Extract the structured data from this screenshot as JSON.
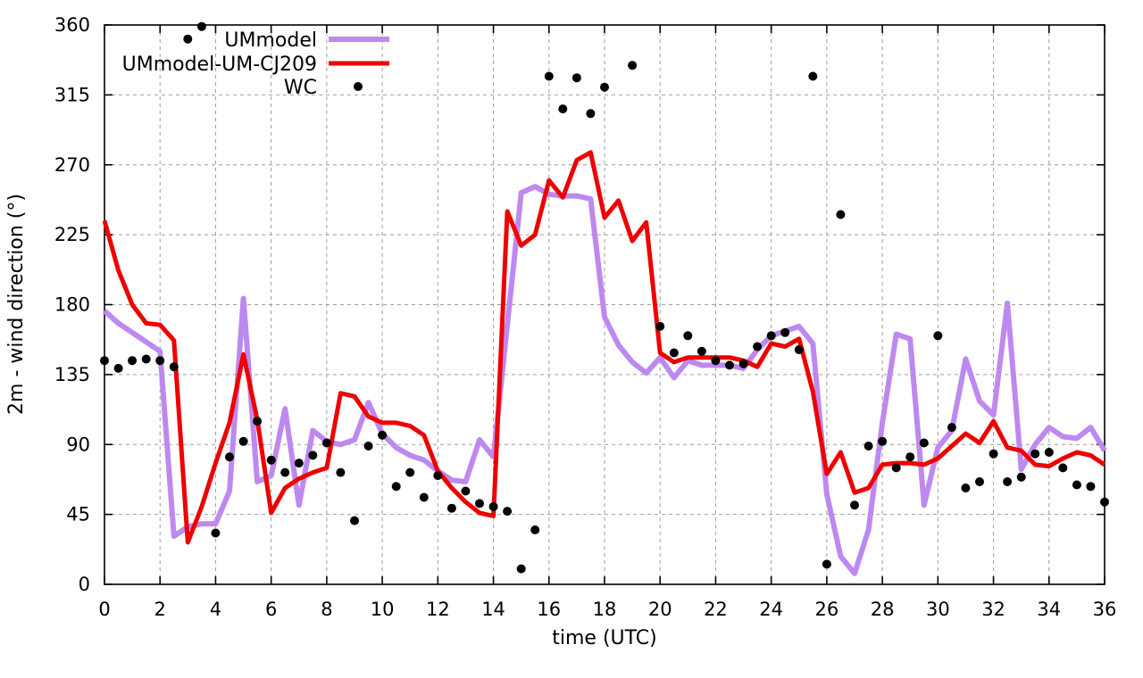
{
  "chart_data": {
    "type": "line+scatter",
    "title": "",
    "xlabel": "time (UTC)",
    "ylabel": "2m - wind direction (°)",
    "xlim": [
      0,
      36
    ],
    "ylim": [
      0,
      360
    ],
    "xticks": [
      0,
      2,
      4,
      6,
      8,
      10,
      12,
      14,
      16,
      18,
      20,
      22,
      24,
      26,
      28,
      30,
      32,
      34,
      36
    ],
    "yticks": [
      0,
      45,
      90,
      135,
      180,
      225,
      270,
      315,
      360
    ],
    "grid": true,
    "legend_position": "top-left-inside",
    "background_color": "#ffffff",
    "grid_color": "#9e9e9e",
    "series": [
      {
        "name": "UMmodel",
        "type": "line",
        "color": "#bd89f0",
        "line_width": 6,
        "points": [
          [
            0,
            176
          ],
          [
            0.5,
            168
          ],
          [
            1,
            162
          ],
          [
            1.5,
            156
          ],
          [
            2,
            150
          ],
          [
            2.5,
            31
          ],
          [
            3,
            37
          ],
          [
            3.5,
            39
          ],
          [
            4,
            39
          ],
          [
            4.5,
            60
          ],
          [
            5,
            184
          ],
          [
            5.5,
            66
          ],
          [
            6,
            70
          ],
          [
            6.5,
            113
          ],
          [
            7,
            51
          ],
          [
            7.5,
            99
          ],
          [
            8,
            92
          ],
          [
            8.5,
            90
          ],
          [
            9,
            93
          ],
          [
            9.5,
            117
          ],
          [
            10,
            97
          ],
          [
            10.5,
            88
          ],
          [
            11,
            83
          ],
          [
            11.5,
            80
          ],
          [
            12,
            73
          ],
          [
            12.5,
            67
          ],
          [
            13,
            66
          ],
          [
            13.5,
            93
          ],
          [
            14,
            82
          ],
          [
            14.5,
            167
          ],
          [
            15,
            252
          ],
          [
            15.5,
            256
          ],
          [
            16,
            251
          ],
          [
            16.5,
            250
          ],
          [
            17,
            250
          ],
          [
            17.5,
            248
          ],
          [
            18,
            172
          ],
          [
            18.5,
            154
          ],
          [
            19,
            143
          ],
          [
            19.5,
            136
          ],
          [
            20,
            146
          ],
          [
            20.5,
            133
          ],
          [
            21,
            144
          ],
          [
            21.5,
            141
          ],
          [
            22,
            141
          ],
          [
            22.5,
            141
          ],
          [
            23,
            139
          ],
          [
            23.5,
            151
          ],
          [
            24,
            160
          ],
          [
            24.5,
            163
          ],
          [
            25,
            166
          ],
          [
            25.5,
            155
          ],
          [
            26,
            58
          ],
          [
            26.5,
            18
          ],
          [
            27,
            7
          ],
          [
            27.5,
            35
          ],
          [
            28,
            104
          ],
          [
            28.5,
            161
          ],
          [
            29,
            158
          ],
          [
            29.5,
            51
          ],
          [
            30,
            88
          ],
          [
            30.5,
            99
          ],
          [
            31,
            145
          ],
          [
            31.5,
            118
          ],
          [
            32,
            109
          ],
          [
            32.5,
            181
          ],
          [
            33,
            74
          ],
          [
            33.5,
            90
          ],
          [
            34,
            101
          ],
          [
            34.5,
            95
          ],
          [
            35,
            94
          ],
          [
            35.5,
            101
          ],
          [
            36,
            86
          ]
        ]
      },
      {
        "name": "UMmodel-UM-CJ209",
        "type": "line",
        "color": "#ee0000",
        "line_width": 5,
        "points": [
          [
            0,
            234
          ],
          [
            0.5,
            202
          ],
          [
            1,
            180
          ],
          [
            1.5,
            168
          ],
          [
            2,
            167
          ],
          [
            2.5,
            157
          ],
          [
            3,
            27
          ],
          [
            3.5,
            50
          ],
          [
            4,
            78
          ],
          [
            4.5,
            104
          ],
          [
            5,
            148
          ],
          [
            5.5,
            106
          ],
          [
            6,
            46
          ],
          [
            6.5,
            62
          ],
          [
            7,
            68
          ],
          [
            7.5,
            72
          ],
          [
            8,
            75
          ],
          [
            8.5,
            123
          ],
          [
            9,
            121
          ],
          [
            9.5,
            108
          ],
          [
            10,
            104
          ],
          [
            10.5,
            104
          ],
          [
            11,
            102
          ],
          [
            11.5,
            96
          ],
          [
            12,
            73
          ],
          [
            12.5,
            62
          ],
          [
            13,
            53
          ],
          [
            13.5,
            46
          ],
          [
            14,
            44
          ],
          [
            14.5,
            240
          ],
          [
            15,
            218
          ],
          [
            15.5,
            225
          ],
          [
            16,
            260
          ],
          [
            16.5,
            249
          ],
          [
            17,
            273
          ],
          [
            17.5,
            278
          ],
          [
            18,
            236
          ],
          [
            18.5,
            247
          ],
          [
            19,
            221
          ],
          [
            19.5,
            233
          ],
          [
            20,
            149
          ],
          [
            20.5,
            143
          ],
          [
            21,
            146
          ],
          [
            21.5,
            146
          ],
          [
            22,
            146
          ],
          [
            22.5,
            146
          ],
          [
            23,
            144
          ],
          [
            23.5,
            140
          ],
          [
            24,
            155
          ],
          [
            24.5,
            153
          ],
          [
            25,
            158
          ],
          [
            25.5,
            124
          ],
          [
            26,
            71
          ],
          [
            26.5,
            85
          ],
          [
            27,
            59
          ],
          [
            27.5,
            62
          ],
          [
            28,
            77
          ],
          [
            28.5,
            78
          ],
          [
            29,
            78
          ],
          [
            29.5,
            77
          ],
          [
            30,
            81
          ],
          [
            30.5,
            89
          ],
          [
            31,
            97
          ],
          [
            31.5,
            91
          ],
          [
            32,
            105
          ],
          [
            32.5,
            88
          ],
          [
            33,
            86
          ],
          [
            33.5,
            77
          ],
          [
            34,
            76
          ],
          [
            34.5,
            81
          ],
          [
            35,
            85
          ],
          [
            35.5,
            83
          ],
          [
            36,
            77
          ]
        ]
      },
      {
        "name": "WC",
        "type": "scatter",
        "color": "#000000",
        "marker": "filled-circle",
        "marker_radius": 5,
        "points": [
          [
            0,
            144
          ],
          [
            0.5,
            139
          ],
          [
            1,
            144
          ],
          [
            1.5,
            145
          ],
          [
            2,
            144
          ],
          [
            2.5,
            140
          ],
          [
            3,
            351
          ],
          [
            3.5,
            359
          ],
          [
            4,
            33
          ],
          [
            4.5,
            82
          ],
          [
            5,
            92
          ],
          [
            5.5,
            105
          ],
          [
            6,
            80
          ],
          [
            6.5,
            72
          ],
          [
            7,
            78
          ],
          [
            7.5,
            83
          ],
          [
            8,
            91
          ],
          [
            8.5,
            72
          ],
          [
            9,
            41
          ],
          [
            9.5,
            89
          ],
          [
            10,
            96
          ],
          [
            10.5,
            63
          ],
          [
            11,
            72
          ],
          [
            11.5,
            56
          ],
          [
            12,
            70
          ],
          [
            12.5,
            49
          ],
          [
            13,
            60
          ],
          [
            13.5,
            52
          ],
          [
            14,
            50
          ],
          [
            14.5,
            47
          ],
          [
            15,
            10
          ],
          [
            15.5,
            35
          ],
          [
            16,
            327
          ],
          [
            16.5,
            306
          ],
          [
            17,
            326
          ],
          [
            17.5,
            303
          ],
          [
            18,
            320
          ],
          [
            19,
            334
          ],
          [
            20,
            166
          ],
          [
            20.5,
            149
          ],
          [
            21,
            160
          ],
          [
            21.5,
            150
          ],
          [
            22,
            144
          ],
          [
            22.5,
            141
          ],
          [
            23,
            142
          ],
          [
            23.5,
            153
          ],
          [
            24,
            160
          ],
          [
            24.5,
            162
          ],
          [
            25,
            151
          ],
          [
            25.5,
            327
          ],
          [
            26,
            13
          ],
          [
            26.5,
            238
          ],
          [
            27,
            51
          ],
          [
            27.5,
            89
          ],
          [
            28,
            92
          ],
          [
            28.5,
            75
          ],
          [
            29,
            82
          ],
          [
            29.5,
            91
          ],
          [
            30,
            160
          ],
          [
            30.5,
            101
          ],
          [
            31,
            62
          ],
          [
            31.5,
            66
          ],
          [
            32,
            84
          ],
          [
            32.5,
            66
          ],
          [
            33,
            69
          ],
          [
            33.5,
            84
          ],
          [
            34,
            85
          ],
          [
            34.5,
            75
          ],
          [
            35,
            64
          ],
          [
            35.5,
            63
          ],
          [
            36,
            53
          ]
        ]
      }
    ]
  }
}
